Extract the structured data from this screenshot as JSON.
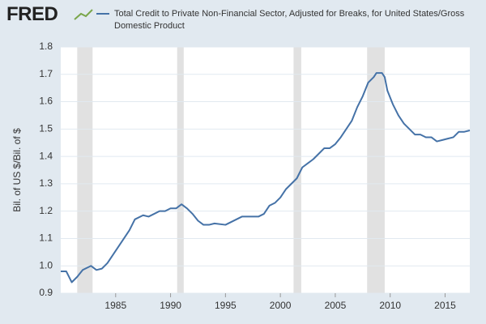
{
  "logo": "FRED",
  "chart_data": {
    "type": "line",
    "ylabel": "Bil. of US $/Bil. of $",
    "xlim": [
      1980.0,
      2017.25
    ],
    "xticks": [
      1985,
      1990,
      1995,
      2000,
      2005,
      2010,
      2015
    ],
    "ylim": [
      0.9,
      1.8
    ],
    "yticks": [
      0.9,
      {
        "value": 1.0,
        "label": "1.0"
      },
      1.1,
      1.2,
      1.3,
      1.4,
      1.5,
      1.6,
      1.7,
      1.8
    ],
    "grid": true,
    "recessions": [
      [
        1981.5,
        1982.9
      ],
      [
        1990.6,
        1991.2
      ],
      [
        2001.2,
        2001.9
      ],
      [
        2007.9,
        2009.5
      ]
    ],
    "recession_color": "#e1e1e1",
    "x": [
      1980.0,
      1980.5,
      1981.0,
      1981.5,
      1982.0,
      1982.75,
      1983.25,
      1983.75,
      1984.25,
      1984.75,
      1985.25,
      1985.75,
      1986.25,
      1986.75,
      1987.5,
      1988.0,
      1988.5,
      1989.0,
      1989.5,
      1990.0,
      1990.5,
      1991.0,
      1991.5,
      1992.0,
      1992.5,
      1993.0,
      1993.5,
      1994.0,
      1995.0,
      1995.5,
      1996.0,
      1996.5,
      1997.0,
      1997.5,
      1998.0,
      1998.5,
      1999.0,
      1999.5,
      2000.0,
      2000.5,
      2001.0,
      2001.5,
      2002.0,
      2002.5,
      2003.0,
      2003.5,
      2004.0,
      2004.5,
      2005.0,
      2005.5,
      2006.0,
      2006.5,
      2007.0,
      2007.5,
      2008.0,
      2008.25,
      2008.5,
      2008.75,
      2009.25,
      2009.5,
      2009.75,
      2010.25,
      2010.75,
      2011.25,
      2011.75,
      2012.25,
      2012.75,
      2013.25,
      2013.75,
      2014.25,
      2014.75,
      2015.25,
      2015.75,
      2016.25,
      2016.75,
      2017.25
    ],
    "series": [
      {
        "name": "Total Credit to Private Non-Financial Sector, Adjusted for Breaks, for United States/Gross Domestic Product",
        "color": "#4572a7",
        "values": [
          0.98,
          0.98,
          0.94,
          0.96,
          0.985,
          1.0,
          0.985,
          0.99,
          1.01,
          1.04,
          1.07,
          1.1,
          1.13,
          1.17,
          1.185,
          1.18,
          1.19,
          1.2,
          1.2,
          1.21,
          1.21,
          1.225,
          1.21,
          1.19,
          1.165,
          1.15,
          1.15,
          1.155,
          1.15,
          1.16,
          1.17,
          1.18,
          1.18,
          1.18,
          1.18,
          1.19,
          1.22,
          1.23,
          1.25,
          1.28,
          1.3,
          1.32,
          1.36,
          1.375,
          1.39,
          1.41,
          1.43,
          1.43,
          1.445,
          1.47,
          1.5,
          1.53,
          1.58,
          1.62,
          1.67,
          1.68,
          1.69,
          1.705,
          1.705,
          1.69,
          1.64,
          1.59,
          1.55,
          1.52,
          1.5,
          1.48,
          1.48,
          1.47,
          1.47,
          1.455,
          1.46,
          1.465,
          1.47,
          1.49,
          1.49,
          1.495
        ]
      }
    ]
  }
}
